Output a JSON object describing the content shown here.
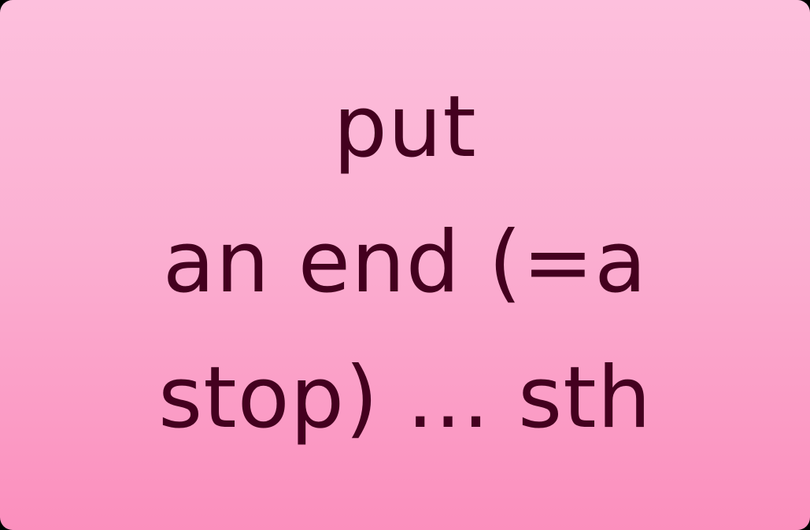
{
  "card": {
    "lines": [
      "put",
      "an end (=a",
      "stop) ... sth"
    ]
  },
  "colors": {
    "text": "#44001f",
    "background_top": "#fdc0dd",
    "background_bottom": "#fb8fbd"
  }
}
